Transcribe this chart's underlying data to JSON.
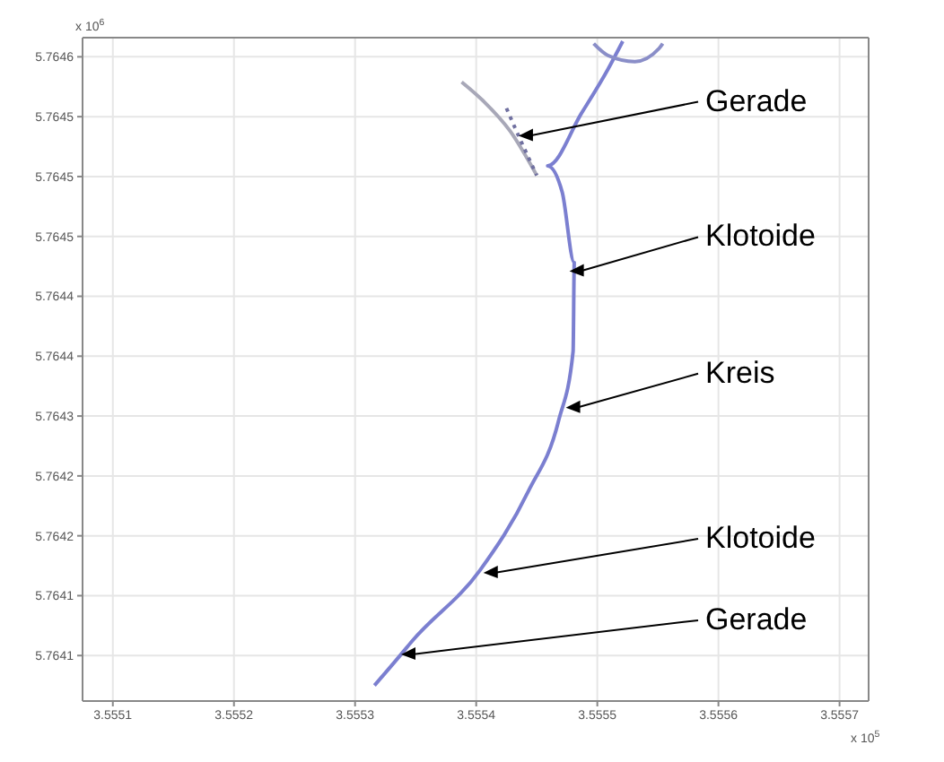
{
  "chart_data": {
    "type": "line",
    "xlabel": "x 10$^{5}$",
    "ylabel": "x 10$^{6}$",
    "xlim": [
      3.555075,
      3.555724
    ],
    "ylim": [
      5.764062,
      5.764616
    ],
    "xticks": [
      3.5551,
      3.5552,
      3.5553,
      3.5554,
      3.5555,
      3.5556,
      3.5557
    ],
    "yticks": [
      {
        "value": 5.7641,
        "label": "5.7641"
      },
      {
        "value": 5.76415,
        "label": "5.7641"
      },
      {
        "value": 5.7642,
        "label": "5.7642"
      },
      {
        "value": 5.76425,
        "label": "5.7642"
      },
      {
        "value": 5.7643,
        "label": "5.7643"
      },
      {
        "value": 5.76435,
        "label": "5.7644"
      },
      {
        "value": 5.7644,
        "label": "5.7644"
      },
      {
        "value": 5.76445,
        "label": "5.7645"
      },
      {
        "value": 5.7645,
        "label": "5.7645"
      },
      {
        "value": 5.76455,
        "label": "5.7645"
      },
      {
        "value": 5.7646,
        "label": "5.7646"
      }
    ],
    "grid": true,
    "marker": "none",
    "series": [
      {
        "color": "#7b7fd0",
        "line_style": "solid",
        "x": [
          3.555316,
          3.555338,
          3.555347,
          3.555403,
          3.555443,
          3.555468,
          3.55548,
          3.555481,
          3.555471,
          3.555459,
          3.555487,
          3.555509,
          3.555521
        ],
        "values": [
          5.764075,
          5.764101,
          5.764112,
          5.764171,
          5.764237,
          5.764296,
          5.764354,
          5.764428,
          5.764487,
          5.764509,
          5.764553,
          5.76459,
          5.764613
        ]
      },
      {
        "color": "#8a8ec8",
        "line_style": "solid",
        "x": [
          3.555497,
          3.555509,
          3.555531,
          3.555551,
          3.555554
        ],
        "values": [
          5.764611,
          5.764601,
          5.764596,
          5.764607,
          5.764611
        ]
      },
      {
        "color": "#a8a8b8",
        "line_style": "solid",
        "x": [
          3.55545,
          3.555428,
          3.555406,
          3.555388
        ],
        "values": [
          5.764501,
          5.764538,
          5.764563,
          5.764579
        ]
      },
      {
        "color": "#7070a0",
        "line_style": "dotted",
        "x": [
          3.555425,
          3.555435,
          3.55545
        ],
        "values": [
          5.764557,
          5.764534,
          5.764501
        ]
      }
    ],
    "annotations": [
      {
        "text": "Gerade",
        "x": 3.555435,
        "y": 5.764534
      },
      {
        "text": "Klotoide",
        "x": 3.555477,
        "y": 5.764421
      },
      {
        "text": "Kreis",
        "x": 3.555474,
        "y": 5.764307
      },
      {
        "text": "Klotoide",
        "x": 3.555406,
        "y": 5.764169
      },
      {
        "text": "Gerade",
        "x": 3.555338,
        "y": 5.764101
      }
    ]
  }
}
